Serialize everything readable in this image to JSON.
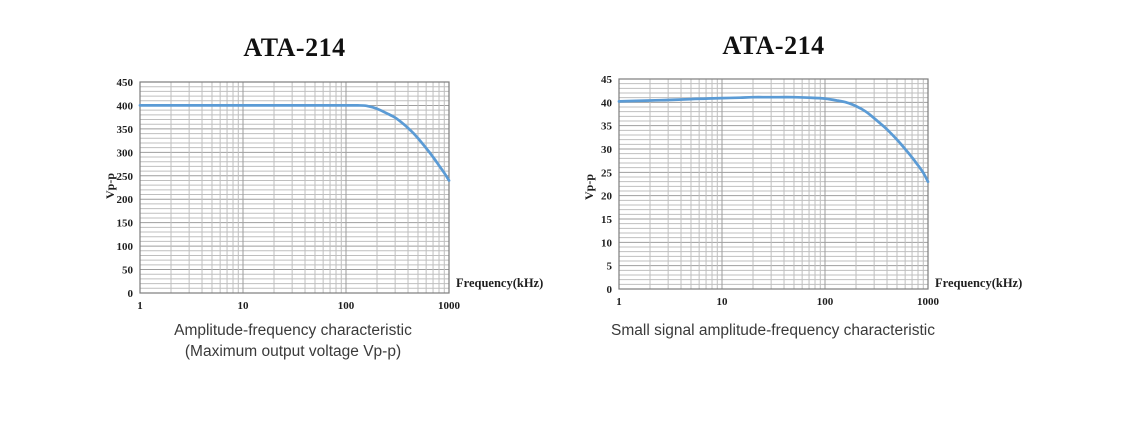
{
  "chart_data": [
    {
      "type": "line",
      "title": "ATA-214",
      "xlabel": "Frequency(kHz)",
      "ylabel": "Vp-p",
      "caption": [
        "Amplitude-frequency characteristic",
        "(Maximum output voltage Vp-p)"
      ],
      "x_scale": "log",
      "xlim": [
        1,
        1000
      ],
      "ylim": [
        0,
        450
      ],
      "x_ticks": [
        1,
        10,
        100,
        1000
      ],
      "y_tick_step": 50,
      "y_minor_step": 10,
      "grid": true,
      "legend": false,
      "series": [
        {
          "color": "#5b9bd5",
          "x": [
            1,
            2,
            5,
            10,
            20,
            50,
            100,
            130,
            160,
            200,
            250,
            300,
            350,
            400,
            450,
            500,
            600,
            700,
            800,
            900,
            1000
          ],
          "y": [
            400,
            400,
            400,
            400,
            400,
            400,
            400,
            400,
            399,
            393,
            383,
            374,
            363,
            352,
            341,
            330,
            309,
            290,
            272,
            256,
            240
          ]
        }
      ]
    },
    {
      "type": "line",
      "title": "ATA-214",
      "xlabel": "Frequency(kHz)",
      "ylabel": "Vp-p",
      "caption": [
        "Small signal amplitude-frequency characteristic"
      ],
      "x_scale": "log",
      "xlim": [
        1,
        1000
      ],
      "ylim": [
        0,
        45
      ],
      "x_ticks": [
        1,
        10,
        100,
        1000
      ],
      "y_tick_step": 5,
      "y_minor_step": 1,
      "grid": true,
      "legend": false,
      "series": [
        {
          "color": "#5b9bd5",
          "x": [
            1,
            2,
            3,
            5,
            7,
            10,
            15,
            20,
            30,
            50,
            70,
            100,
            130,
            160,
            200,
            250,
            300,
            400,
            500,
            600,
            700,
            800,
            900,
            1000
          ],
          "y": [
            40.2,
            40.4,
            40.5,
            40.7,
            40.8,
            40.9,
            41.0,
            41.1,
            41.1,
            41.1,
            41.0,
            40.8,
            40.4,
            40.0,
            39.2,
            38.0,
            36.6,
            34.2,
            32.0,
            30.0,
            28.2,
            26.5,
            24.9,
            23.0
          ]
        }
      ]
    }
  ],
  "grid_colors": {
    "minor": "#bfbfbf",
    "major": "#9e9e9e",
    "border": "#7d7d7d"
  }
}
